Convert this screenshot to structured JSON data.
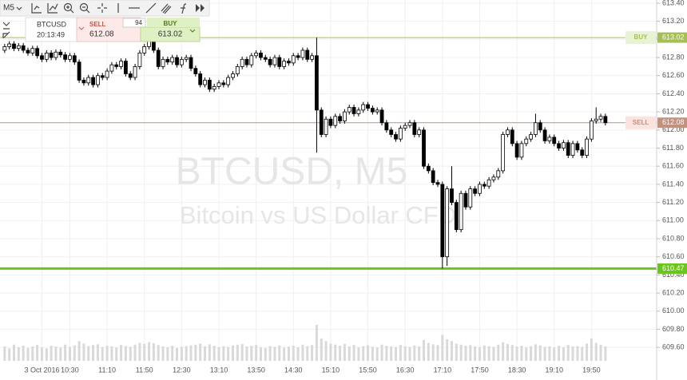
{
  "toolbar": {
    "timeframe": "M5"
  },
  "trade_panel": {
    "symbol": "BTCUSD",
    "time": "20:13:49",
    "sell_label": "SELL",
    "sell_price": 612.08,
    "spread": 94,
    "buy_label": "BUY",
    "buy_price": 613.02
  },
  "chart_data": {
    "type": "candlestick",
    "watermark_title": "BTCUSD, M5",
    "watermark_subtitle": "Bitcoin vs US Dollar CFD",
    "up_color": "#ffffff",
    "down_color": "#000000",
    "outline_color": "#000000",
    "volume_color": "#d9d9d9",
    "grid": true,
    "xlim": [
      -1,
      140
    ],
    "xticks": [
      {
        "value": 8,
        "label": "3 Oct 2016"
      },
      {
        "value": 14,
        "label": "10:30"
      },
      {
        "value": 22,
        "label": "11:10"
      },
      {
        "value": 30,
        "label": "11:50"
      },
      {
        "value": 38,
        "label": "12:30"
      },
      {
        "value": 46,
        "label": "13:10"
      },
      {
        "value": 54,
        "label": "13:50"
      },
      {
        "value": 62,
        "label": "14:30"
      },
      {
        "value": 70,
        "label": "15:10"
      },
      {
        "value": 78,
        "label": "15:50"
      },
      {
        "value": 86,
        "label": "16:30"
      },
      {
        "value": 94,
        "label": "17:10"
      },
      {
        "value": 102,
        "label": "17:50"
      },
      {
        "value": 110,
        "label": "18:30"
      },
      {
        "value": 118,
        "label": "19:10"
      },
      {
        "value": 126,
        "label": "19:50"
      }
    ],
    "ylim": [
      609.24,
      613.435
    ],
    "yticks": [
      {
        "value": 613.4,
        "label": "613.40"
      },
      {
        "value": 613.2,
        "label": "613.20"
      },
      {
        "value": 613.0,
        "label": "613.00"
      },
      {
        "value": 612.8,
        "label": "612.80"
      },
      {
        "value": 612.6,
        "label": "612.60"
      },
      {
        "value": 612.4,
        "label": "612.40"
      },
      {
        "value": 612.2,
        "label": "612.20"
      },
      {
        "value": 612.0,
        "label": "612.00"
      },
      {
        "value": 611.8,
        "label": "611.80"
      },
      {
        "value": 611.6,
        "label": "611.60"
      },
      {
        "value": 611.4,
        "label": "611.40"
      },
      {
        "value": 611.2,
        "label": "611.20"
      },
      {
        "value": 611.0,
        "label": "611.00"
      },
      {
        "value": 610.8,
        "label": "610.80"
      },
      {
        "value": 610.6,
        "label": "610.60"
      },
      {
        "value": 610.4,
        "label": "610.40"
      },
      {
        "value": 610.2,
        "label": "610.20"
      },
      {
        "value": 610.0,
        "label": "610.00"
      },
      {
        "value": 609.8,
        "label": "609.80"
      },
      {
        "value": 609.6,
        "label": "609.60"
      }
    ],
    "levels": [
      {
        "name": "BUY",
        "value": 613.02,
        "color": "#a4bf52",
        "label_bg": "#e9f2d4"
      },
      {
        "name": "SELL",
        "value": 612.08,
        "color": "#c4917f",
        "label_bg": "#fbe3e0"
      },
      {
        "value": 610.47,
        "color": "#6cc51c"
      }
    ],
    "open": [
      612.88,
      612.92,
      612.95,
      612.9,
      612.93,
      612.88,
      612.85,
      612.9,
      612.82,
      612.78,
      612.85,
      612.8,
      612.86,
      612.83,
      612.78,
      612.82,
      612.75,
      612.55,
      612.52,
      612.58,
      612.5,
      612.6,
      612.58,
      612.65,
      612.72,
      612.7,
      612.76,
      612.62,
      612.58,
      612.7,
      612.85,
      612.92,
      613.0,
      612.88,
      612.7,
      612.78,
      612.75,
      612.8,
      612.72,
      612.78,
      612.8,
      612.68,
      612.62,
      612.5,
      612.55,
      612.45,
      612.48,
      612.52,
      612.5,
      612.58,
      612.62,
      612.7,
      612.78,
      612.72,
      612.82,
      612.85,
      612.8,
      612.78,
      612.72,
      612.8,
      612.7,
      612.76,
      612.74,
      612.82,
      612.8,
      612.88,
      612.78,
      612.82,
      612.22,
      611.95,
      612.12,
      612.05,
      612.15,
      612.1,
      612.2,
      612.25,
      612.18,
      612.22,
      612.28,
      612.24,
      612.2,
      612.22,
      612.08,
      612.0,
      611.95,
      611.9,
      612.02,
      612.05,
      612.08,
      611.95,
      612.0,
      611.6,
      611.55,
      611.42,
      611.4,
      610.6,
      611.35,
      611.2,
      610.9,
      611.3,
      611.15,
      611.35,
      611.3,
      611.4,
      611.38,
      611.45,
      611.48,
      611.55,
      611.95,
      612.0,
      611.85,
      611.7,
      611.85,
      611.9,
      611.95,
      612.08,
      612.0,
      611.88,
      611.92,
      611.85,
      611.8,
      611.86,
      611.72,
      611.85,
      611.78,
      611.72,
      611.9,
      612.1,
      612.12,
      612.15
    ],
    "high": [
      612.95,
      612.98,
      612.98,
      612.96,
      612.96,
      612.91,
      612.93,
      612.93,
      612.85,
      612.88,
      612.88,
      612.89,
      612.89,
      612.86,
      612.85,
      612.85,
      612.78,
      612.58,
      612.61,
      612.61,
      612.63,
      612.63,
      612.68,
      612.75,
      612.75,
      612.79,
      612.79,
      612.65,
      612.73,
      612.88,
      612.95,
      613.03,
      613.03,
      612.91,
      612.81,
      612.81,
      612.83,
      612.83,
      612.81,
      612.83,
      612.83,
      612.71,
      612.65,
      612.58,
      612.58,
      612.51,
      612.55,
      612.55,
      612.61,
      612.65,
      612.73,
      612.81,
      612.81,
      612.85,
      612.88,
      612.88,
      612.83,
      612.81,
      612.83,
      612.83,
      612.79,
      612.79,
      612.85,
      612.85,
      612.91,
      612.91,
      612.85,
      613.02,
      612.25,
      612.15,
      612.15,
      612.18,
      612.18,
      612.23,
      612.28,
      612.28,
      612.25,
      612.31,
      612.31,
      612.27,
      612.25,
      612.25,
      612.11,
      612.03,
      611.98,
      612.05,
      612.08,
      612.11,
      612.11,
      612.03,
      612.03,
      611.63,
      611.58,
      611.45,
      611.43,
      611.38,
      611.6,
      611.23,
      611.33,
      611.33,
      611.38,
      611.38,
      611.43,
      611.43,
      611.48,
      611.51,
      611.58,
      611.98,
      612.03,
      612.03,
      611.88,
      611.88,
      611.93,
      611.98,
      612.18,
      612.11,
      612.03,
      611.95,
      611.95,
      611.88,
      611.89,
      611.89,
      611.88,
      611.88,
      611.81,
      611.93,
      612.13,
      612.25,
      612.18,
      612.18
    ],
    "low": [
      612.85,
      612.89,
      612.87,
      612.87,
      612.85,
      612.82,
      612.82,
      612.79,
      612.75,
      612.75,
      612.77,
      612.77,
      612.8,
      612.75,
      612.75,
      612.72,
      612.52,
      612.49,
      612.49,
      612.47,
      612.47,
      612.55,
      612.55,
      612.62,
      612.67,
      612.67,
      612.59,
      612.55,
      612.55,
      612.67,
      612.82,
      612.89,
      612.85,
      612.67,
      612.67,
      612.72,
      612.72,
      612.69,
      612.69,
      612.75,
      612.65,
      612.59,
      612.47,
      612.47,
      612.42,
      612.42,
      612.45,
      612.47,
      612.47,
      612.55,
      612.59,
      612.67,
      612.69,
      612.69,
      612.79,
      612.77,
      612.75,
      612.69,
      612.69,
      612.67,
      612.67,
      612.71,
      612.71,
      612.77,
      612.77,
      612.75,
      612.75,
      611.75,
      611.92,
      611.92,
      612.02,
      612.02,
      612.07,
      612.07,
      612.17,
      612.15,
      612.15,
      612.19,
      612.21,
      612.17,
      612.17,
      612.05,
      611.97,
      611.92,
      611.87,
      611.87,
      611.99,
      612.02,
      611.92,
      611.92,
      611.57,
      611.52,
      611.39,
      611.37,
      610.47,
      610.5,
      611.17,
      610.87,
      610.87,
      611.12,
      611.12,
      611.27,
      611.27,
      611.35,
      611.35,
      611.42,
      611.45,
      611.52,
      611.92,
      611.82,
      611.67,
      611.67,
      611.82,
      611.87,
      611.92,
      611.97,
      611.85,
      611.85,
      611.82,
      611.77,
      611.77,
      611.69,
      611.69,
      611.75,
      611.69,
      611.69,
      611.87,
      612.07,
      612.09,
      612.05
    ],
    "close": [
      612.92,
      612.95,
      612.9,
      612.93,
      612.88,
      612.85,
      612.9,
      612.82,
      612.78,
      612.85,
      612.8,
      612.86,
      612.83,
      612.78,
      612.82,
      612.75,
      612.55,
      612.52,
      612.58,
      612.5,
      612.6,
      612.58,
      612.65,
      612.72,
      612.7,
      612.76,
      612.62,
      612.58,
      612.7,
      612.85,
      612.92,
      613.0,
      612.88,
      612.7,
      612.78,
      612.75,
      612.8,
      612.72,
      612.78,
      612.8,
      612.68,
      612.62,
      612.5,
      612.55,
      612.45,
      612.48,
      612.52,
      612.5,
      612.58,
      612.62,
      612.7,
      612.78,
      612.72,
      612.82,
      612.85,
      612.8,
      612.78,
      612.72,
      612.8,
      612.7,
      612.76,
      612.74,
      612.82,
      612.8,
      612.88,
      612.78,
      612.82,
      612.22,
      611.95,
      612.12,
      612.05,
      612.15,
      612.1,
      612.2,
      612.25,
      612.18,
      612.22,
      612.28,
      612.24,
      612.2,
      612.22,
      612.08,
      612.0,
      611.95,
      611.9,
      612.02,
      612.05,
      612.08,
      611.95,
      612.0,
      611.6,
      611.55,
      611.42,
      611.4,
      610.6,
      611.35,
      611.2,
      610.9,
      611.3,
      611.15,
      611.35,
      611.3,
      611.4,
      611.38,
      611.45,
      611.48,
      611.55,
      611.95,
      612.0,
      611.85,
      611.7,
      611.85,
      611.9,
      611.95,
      612.08,
      612.0,
      611.88,
      611.92,
      611.85,
      611.8,
      611.86,
      611.72,
      611.85,
      611.78,
      611.72,
      611.9,
      612.1,
      612.12,
      612.15,
      612.08
    ],
    "volume": [
      40,
      35,
      45,
      38,
      42,
      36,
      40,
      44,
      38,
      35,
      42,
      40,
      37,
      45,
      39,
      43,
      55,
      48,
      41,
      44,
      46,
      38,
      42,
      40,
      37,
      44,
      41,
      39,
      45,
      50,
      47,
      52,
      49,
      44,
      40,
      38,
      42,
      36,
      39,
      41,
      43,
      45,
      48,
      40,
      46,
      42,
      38,
      41,
      39,
      43,
      45,
      47,
      40,
      42,
      44,
      38,
      36,
      41,
      39,
      43,
      37,
      40,
      42,
      38,
      45,
      41,
      44,
      100,
      62,
      55,
      48,
      45,
      42,
      47,
      40,
      44,
      38,
      41,
      43,
      39,
      37,
      45,
      42,
      40,
      38,
      44,
      41,
      39,
      43,
      40,
      58,
      50,
      46,
      44,
      72,
      60,
      55,
      48,
      45,
      42,
      44,
      40,
      38,
      43,
      41,
      39,
      45,
      52,
      47,
      44,
      40,
      42,
      38,
      41,
      46,
      43,
      39,
      40,
      37,
      42,
      38,
      44,
      40,
      41,
      39,
      48,
      62,
      50,
      45,
      40
    ]
  }
}
